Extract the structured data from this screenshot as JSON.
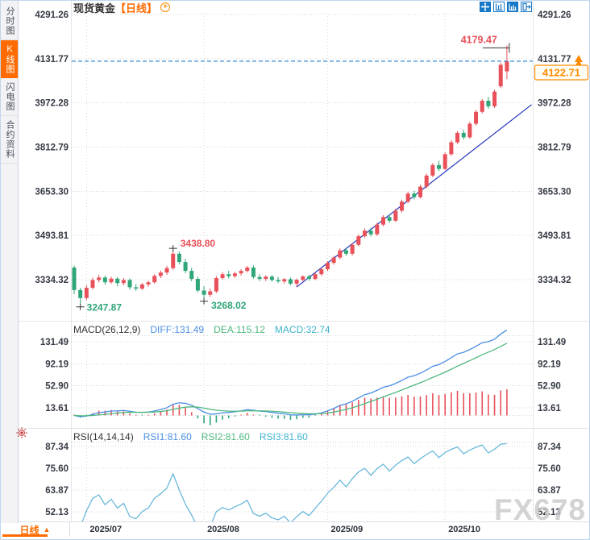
{
  "header": {
    "symbol": "现货黄金",
    "period": "【日线】",
    "add_label": "+"
  },
  "sidebar": {
    "tabs": [
      {
        "label": "分时图",
        "active": false
      },
      {
        "label": "K线图",
        "active": true
      },
      {
        "label": "闪电图",
        "active": false
      },
      {
        "label": "合约资料",
        "active": false
      }
    ]
  },
  "toolbar": {
    "icons": [
      {
        "name": "crosshair-tool",
        "active": true
      },
      {
        "name": "axis-scale-tool",
        "active": false
      },
      {
        "name": "bar-scale-tool",
        "active": true
      },
      {
        "name": "exit-tool",
        "active": false
      }
    ]
  },
  "bottom": {
    "period_tab": "日线",
    "arrow": "▲"
  },
  "watermark": "FX678",
  "colors": {
    "up": "#e8505a",
    "down": "#2fa678",
    "diff": "#4a8fe2",
    "dea": "#4fb87f",
    "rsi": "#5fb3d9",
    "trend": "#2233bb",
    "dashed": "#1f7fd4",
    "accent": "#ff6b00",
    "accent2": "#ff8a00",
    "grid": "#d9d9de",
    "separator": "#e3e6ea",
    "text": "#363b45",
    "green_label": "#2fa678",
    "red_label": "#e8505a",
    "marker": "#333333",
    "icon_blue": "#1878c8"
  },
  "chart_data": [
    {
      "type": "candlestick",
      "title": "现货黄金 日线",
      "y_ticks": [
        4291.26,
        4131.77,
        3972.28,
        3812.79,
        3653.3,
        3493.81,
        3334.32
      ],
      "x_ticks": [
        {
          "label": "2025/07",
          "index": 2
        },
        {
          "label": "2025/08",
          "index": 21
        },
        {
          "label": "2025/09",
          "index": 41
        },
        {
          "label": "2025/10",
          "index": 60
        }
      ],
      "ohlc": [
        [
          3378,
          3385,
          3282,
          3297
        ],
        [
          3297,
          3305,
          3247.87,
          3268
        ],
        [
          3268,
          3315,
          3260,
          3305
        ],
        [
          3305,
          3341,
          3299,
          3333
        ],
        [
          3333,
          3352,
          3324,
          3342
        ],
        [
          3342,
          3349,
          3316,
          3325
        ],
        [
          3325,
          3345,
          3319,
          3338
        ],
        [
          3338,
          3344,
          3310,
          3322
        ],
        [
          3322,
          3340,
          3314,
          3333
        ],
        [
          3333,
          3339,
          3298,
          3307
        ],
        [
          3307,
          3319,
          3294,
          3302
        ],
        [
          3302,
          3323,
          3297,
          3317
        ],
        [
          3317,
          3331,
          3309,
          3325
        ],
        [
          3325,
          3354,
          3320,
          3348
        ],
        [
          3348,
          3367,
          3340,
          3360
        ],
        [
          3360,
          3384,
          3352,
          3376
        ],
        [
          3376,
          3438.8,
          3370,
          3428
        ],
        [
          3428,
          3436,
          3390,
          3398
        ],
        [
          3398,
          3410,
          3358,
          3366
        ],
        [
          3366,
          3377,
          3329,
          3337
        ],
        [
          3337,
          3345,
          3289,
          3295
        ],
        [
          3295,
          3311,
          3268.02,
          3280
        ],
        [
          3280,
          3302,
          3272,
          3292
        ],
        [
          3292,
          3347,
          3286,
          3340
        ],
        [
          3340,
          3362,
          3334,
          3354
        ],
        [
          3354,
          3366,
          3339,
          3347
        ],
        [
          3347,
          3363,
          3341,
          3357
        ],
        [
          3357,
          3372,
          3349,
          3366
        ],
        [
          3366,
          3384,
          3360,
          3378
        ],
        [
          3378,
          3386,
          3338,
          3344
        ],
        [
          3344,
          3354,
          3330,
          3337
        ],
        [
          3337,
          3350,
          3329,
          3345
        ],
        [
          3345,
          3352,
          3327,
          3333
        ],
        [
          3333,
          3344,
          3322,
          3328
        ],
        [
          3328,
          3340,
          3320,
          3336
        ],
        [
          3336,
          3342,
          3314,
          3320
        ],
        [
          3320,
          3338,
          3308,
          3334
        ],
        [
          3334,
          3350,
          3328,
          3346
        ],
        [
          3346,
          3353,
          3330,
          3337
        ],
        [
          3337,
          3359,
          3333,
          3354
        ],
        [
          3354,
          3377,
          3348,
          3372
        ],
        [
          3372,
          3401,
          3366,
          3395
        ],
        [
          3395,
          3420,
          3389,
          3414
        ],
        [
          3414,
          3447,
          3408,
          3440
        ],
        [
          3440,
          3450,
          3420,
          3428
        ],
        [
          3428,
          3467,
          3422,
          3460
        ],
        [
          3460,
          3498,
          3454,
          3491
        ],
        [
          3491,
          3519,
          3485,
          3511
        ],
        [
          3511,
          3521,
          3490,
          3498
        ],
        [
          3498,
          3540,
          3492,
          3533
        ],
        [
          3533,
          3567,
          3527,
          3560
        ],
        [
          3560,
          3570,
          3539,
          3547
        ],
        [
          3547,
          3590,
          3543,
          3583
        ],
        [
          3583,
          3623,
          3577,
          3616
        ],
        [
          3616,
          3652,
          3610,
          3645
        ],
        [
          3645,
          3655,
          3624,
          3632
        ],
        [
          3632,
          3677,
          3627,
          3670
        ],
        [
          3670,
          3717,
          3664,
          3710
        ],
        [
          3710,
          3755,
          3704,
          3748
        ],
        [
          3748,
          3763,
          3726,
          3734
        ],
        [
          3734,
          3794,
          3729,
          3787
        ],
        [
          3787,
          3837,
          3781,
          3830
        ],
        [
          3830,
          3871,
          3824,
          3864
        ],
        [
          3864,
          3876,
          3840,
          3848
        ],
        [
          3848,
          3904,
          3843,
          3897
        ],
        [
          3897,
          3947,
          3891,
          3940
        ],
        [
          3940,
          3987,
          3934,
          3980
        ],
        [
          3980,
          3994,
          3951,
          3960
        ],
        [
          3960,
          4020,
          3954,
          4013
        ],
        [
          4032,
          4118,
          4026,
          4110
        ],
        [
          4086,
          4179.47,
          4058,
          4122.71
        ]
      ],
      "annotations": {
        "low1": {
          "index": 1,
          "price": 3247.87,
          "label": "3247.87"
        },
        "low2": {
          "index": 21,
          "price": 3268.02,
          "label": "3268.02"
        },
        "high1": {
          "index": 16,
          "price": 3438.8,
          "label": "3438.80"
        },
        "peak": {
          "index": 70,
          "price": 4179.47,
          "label": "4179.47"
        },
        "last_price": {
          "value": 4122.71,
          "label": "4122.71",
          "axis_label": "4131.77"
        }
      },
      "trendline": {
        "from_index": 36,
        "from_price": 3308,
        "to_index": 74,
        "to_price": 3966
      }
    },
    {
      "type": "macd",
      "labels": {
        "name": "MACD(26,12,9)",
        "diff": "DIFF:131.49",
        "dea": "DEA:115.12",
        "macd": "MACD:32.74"
      },
      "values": {
        "diff": 131.49,
        "dea": 115.12,
        "macd": 32.74
      },
      "params": [
        26,
        12,
        9
      ],
      "y_ticks": [
        131.49,
        92.19,
        52.9,
        13.61
      ]
    },
    {
      "type": "rsi",
      "labels": {
        "name": "RSI(14,14,14)",
        "rsi1": "RSI1:81.60",
        "rsi2": "RSI2:81.60",
        "rsi3": "RSI3:81.60"
      },
      "values": {
        "rsi1": 81.6,
        "rsi2": 81.6,
        "rsi3": 81.6
      },
      "params": [
        14,
        14,
        14
      ],
      "y_ticks": [
        87.34,
        75.6,
        63.87,
        52.13
      ]
    }
  ]
}
